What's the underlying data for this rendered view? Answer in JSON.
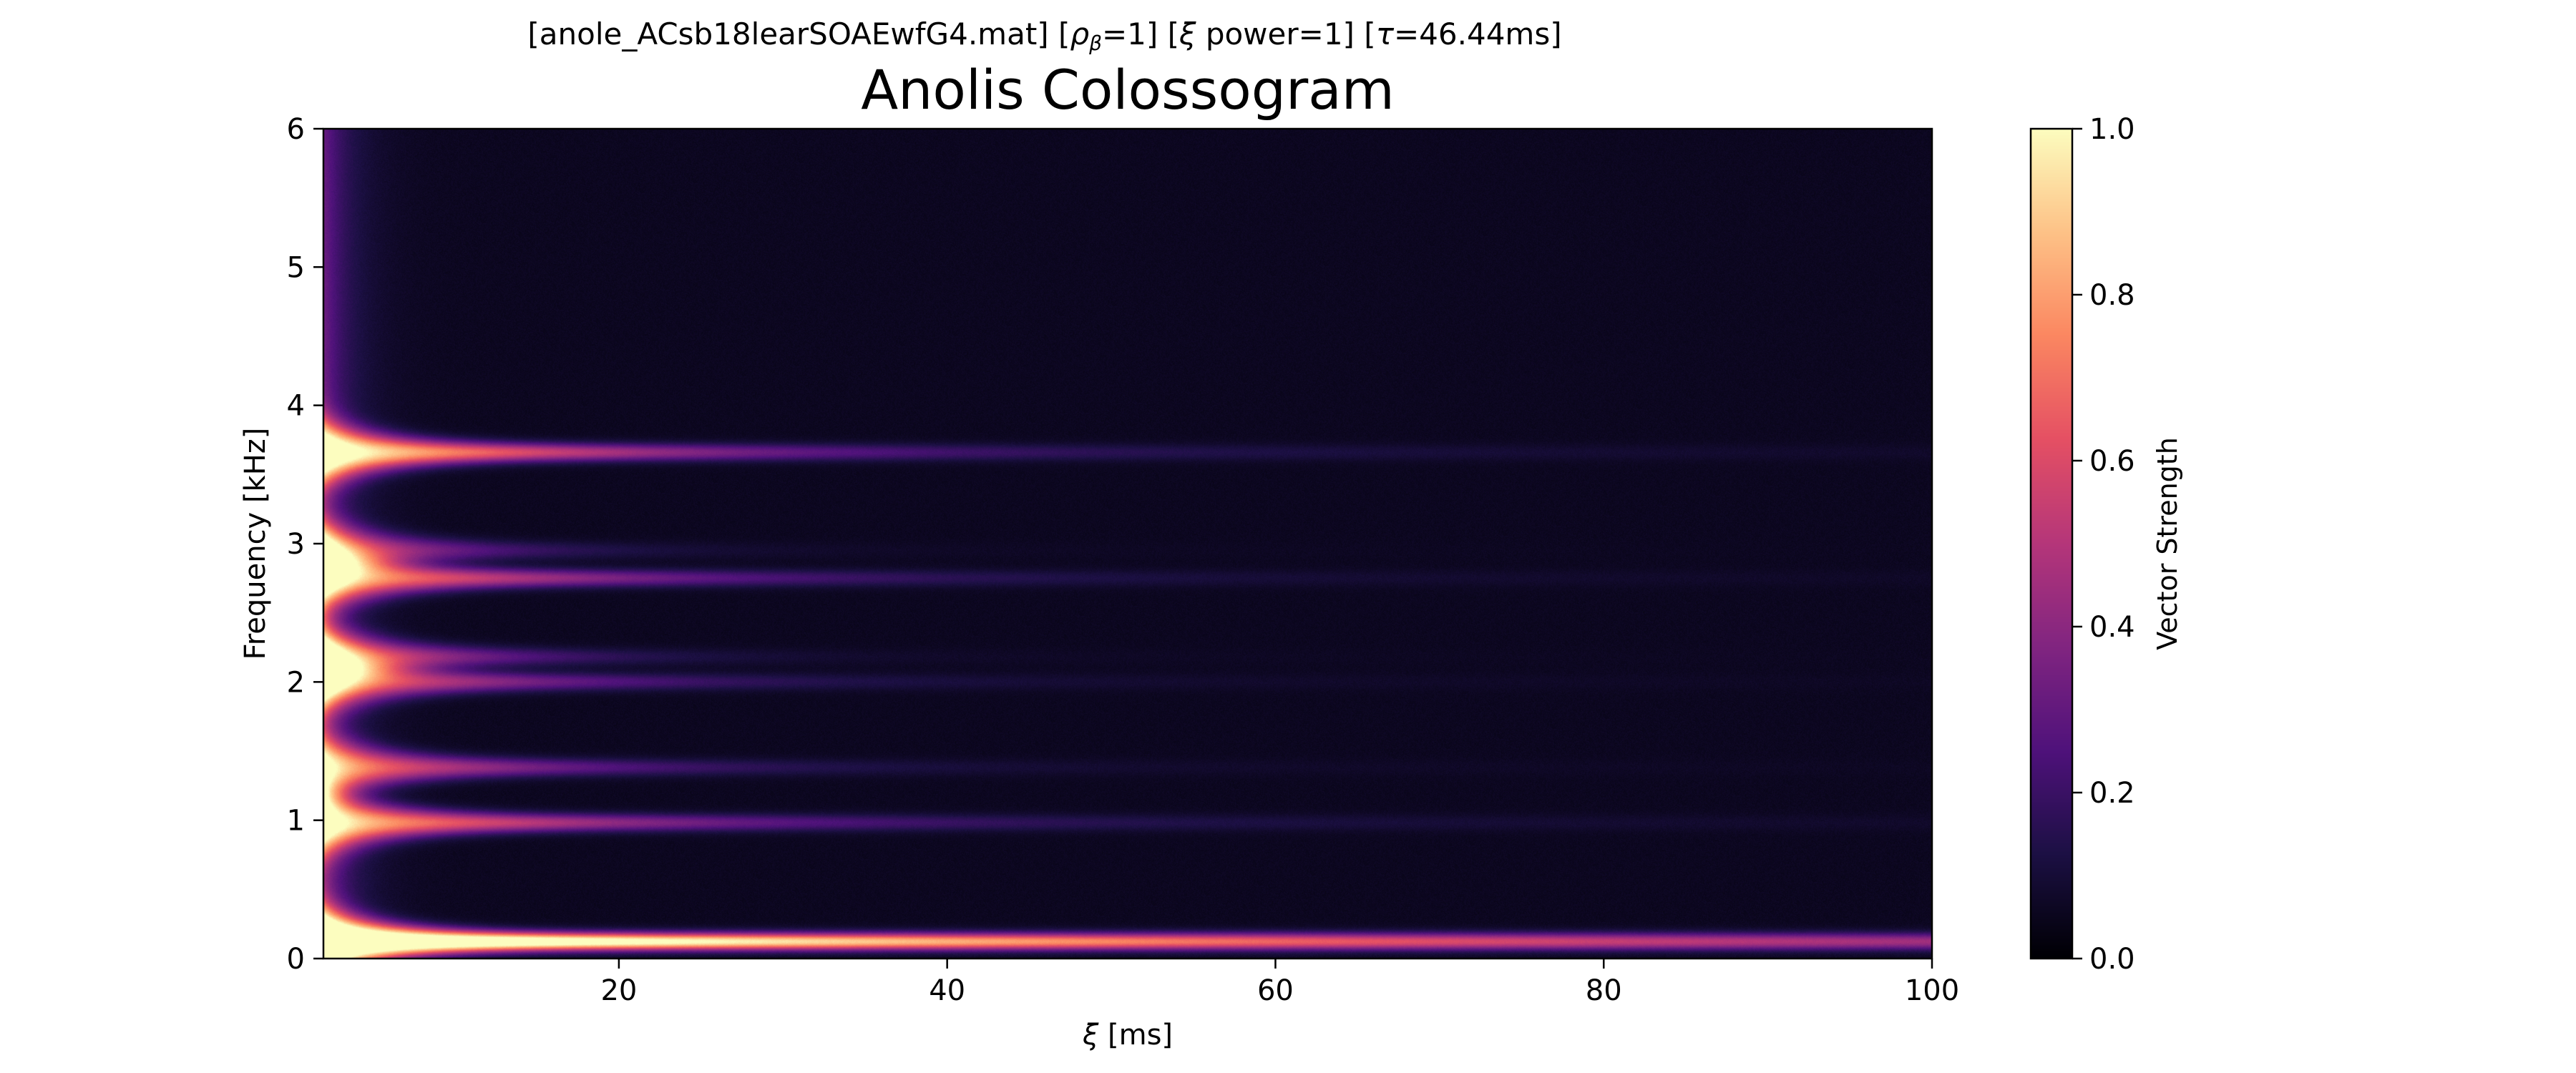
{
  "figure": {
    "suptitle": "[anole_ACsb18learSOAEwfG4.mat]   [ρβ=1]   [ξ power=1]   [τ=46.44ms]",
    "suptitle_parts": {
      "file": "[anole_ACsb18learSOAEwfG4.mat]",
      "rho_symbol": "ρ",
      "rho_sub": "β",
      "rho_value": "=1]",
      "xi_symbol": "ξ",
      "xi_power": " power=1]",
      "tau_symbol": "τ",
      "tau_value": "=46.44ms]"
    },
    "title": "Anolis Colossogram"
  },
  "chart_data": {
    "type": "heatmap",
    "title": "Anolis Colossogram",
    "xlabel": "ξ [ms]",
    "xlabel_parts": {
      "symbol": "ξ",
      "text": " [ms]"
    },
    "ylabel": "Frequency [kHz]",
    "xlim": [
      2,
      100
    ],
    "ylim": [
      0,
      6
    ],
    "x_ticks": [
      20,
      40,
      60,
      80,
      100
    ],
    "y_ticks": [
      0,
      1,
      2,
      3,
      4,
      5,
      6
    ],
    "colormap": "magma",
    "colorbar": {
      "label": "Vector Strength",
      "range": [
        0.0,
        1.0
      ],
      "ticks": [
        "0.0",
        "0.2",
        "0.4",
        "0.6",
        "0.8",
        "1.0"
      ]
    },
    "background_level": 0.04,
    "bands": [
      {
        "freq_khz": 0.12,
        "peak": 1.0,
        "decay_ms": 60,
        "floor": 0.3
      },
      {
        "freq_khz": 0.98,
        "peak": 0.8,
        "decay_ms": 18,
        "floor": 0.07
      },
      {
        "freq_khz": 1.38,
        "peak": 0.72,
        "decay_ms": 12,
        "floor": 0.05
      },
      {
        "freq_khz": 2.0,
        "peak": 0.7,
        "decay_ms": 12,
        "floor": 0.06
      },
      {
        "freq_khz": 2.18,
        "peak": 0.8,
        "decay_ms": 8,
        "floor": 0.04
      },
      {
        "freq_khz": 2.75,
        "peak": 0.78,
        "decay_ms": 16,
        "floor": 0.06
      },
      {
        "freq_khz": 2.95,
        "peak": 0.7,
        "decay_ms": 7,
        "floor": 0.04
      },
      {
        "freq_khz": 3.66,
        "peak": 0.95,
        "decay_ms": 18,
        "floor": 0.07
      }
    ]
  },
  "colors": {
    "magma_stops": [
      "#000004",
      "#1c1044",
      "#4f127b",
      "#812581",
      "#b5367a",
      "#e55064",
      "#fb8761",
      "#fec287",
      "#fcfdbf"
    ]
  }
}
